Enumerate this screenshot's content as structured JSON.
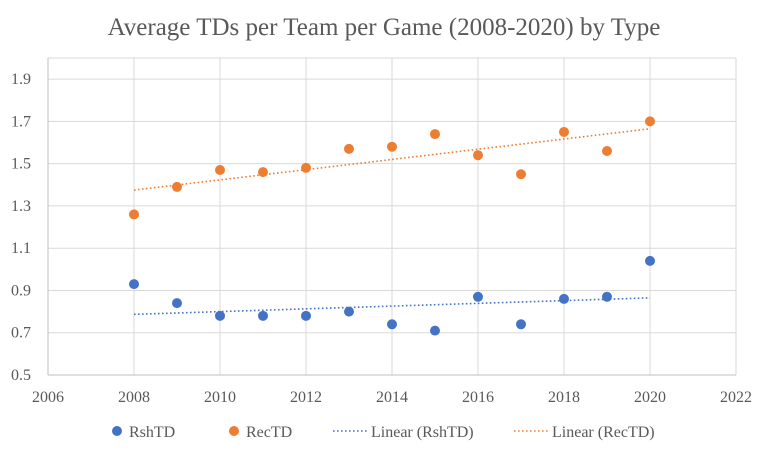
{
  "chart_data": {
    "type": "scatter",
    "title": "Average TDs per Team per Game (2008-2020) by Type",
    "xlabel": "",
    "ylabel": "",
    "xlim": [
      2006,
      2022
    ],
    "ylim": [
      0.5,
      2.0
    ],
    "x_ticks": [
      "2006",
      "2008",
      "2010",
      "2012",
      "2014",
      "2016",
      "2018",
      "2020",
      "2022"
    ],
    "y_ticks": [
      "0.5",
      "0.7",
      "0.9",
      "1.1",
      "1.3",
      "1.5",
      "1.7",
      "1.9"
    ],
    "grid": "horizontal and vertical",
    "legend_position": "bottom",
    "series": [
      {
        "name": "RshTD",
        "kind": "markers",
        "color": "#4472C4",
        "x": [
          2008,
          2009,
          2010,
          2011,
          2012,
          2013,
          2014,
          2015,
          2016,
          2017,
          2018,
          2019,
          2020
        ],
        "y": [
          0.93,
          0.84,
          0.78,
          0.78,
          0.78,
          0.8,
          0.74,
          0.71,
          0.87,
          0.74,
          0.86,
          0.87,
          1.04
        ]
      },
      {
        "name": "RecTD",
        "kind": "markers",
        "color": "#ED7D31",
        "x": [
          2008,
          2009,
          2010,
          2011,
          2012,
          2013,
          2014,
          2015,
          2016,
          2017,
          2018,
          2019,
          2020
        ],
        "y": [
          1.26,
          1.39,
          1.47,
          1.46,
          1.48,
          1.57,
          1.58,
          1.64,
          1.54,
          1.45,
          1.65,
          1.56,
          1.7
        ]
      },
      {
        "name": "Linear (RshTD)",
        "kind": "trendline",
        "color": "#4472C4",
        "x": [
          2008,
          2020
        ],
        "y": [
          0.787,
          0.865
        ]
      },
      {
        "name": "Linear (RecTD)",
        "kind": "trendline",
        "color": "#ED7D31",
        "x": [
          2008,
          2020
        ],
        "y": [
          1.375,
          1.665
        ]
      }
    ]
  }
}
